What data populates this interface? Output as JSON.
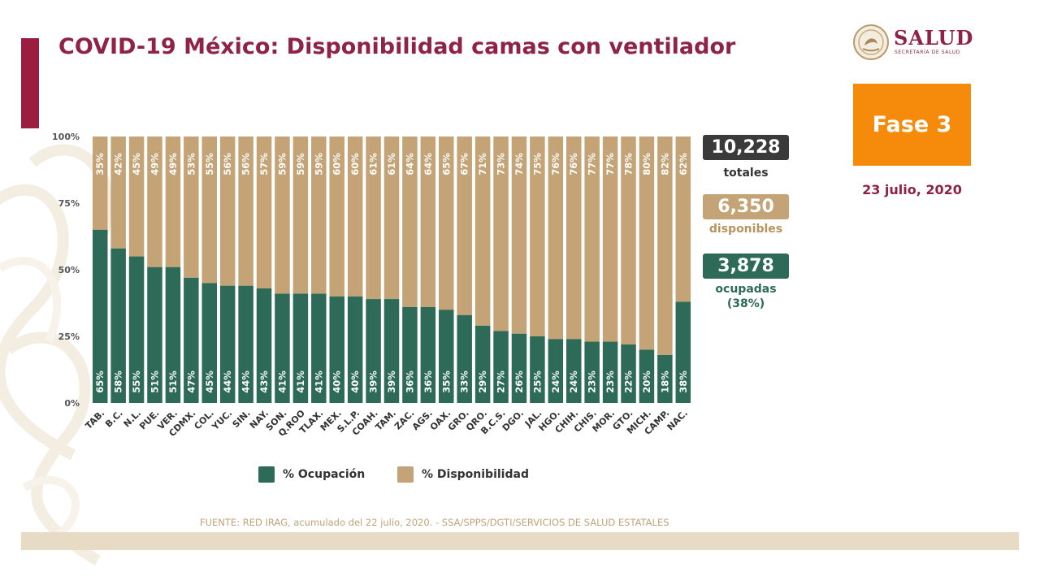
{
  "header": {
    "title": "COVID-19 México: Disponibilidad camas con ventilador"
  },
  "logo": {
    "name": "SALUD",
    "subtitle": "SECRETARÍA DE SALUD"
  },
  "phase": "Fase 3",
  "date": "23 julio, 2020",
  "stats": {
    "total_value": "10,228",
    "total_label": "totales",
    "available_value": "6,350",
    "available_label": "disponibles",
    "occupied_value": "3,878",
    "occupied_label": "ocupadas",
    "occupied_pct": "(38%)"
  },
  "source": "FUENTE: RED IRAG, acumulado del 22 julio, 2020. -  SSA/SPPS/DGTI/SERVICIOS DE SALUD ESTATALES",
  "colors": {
    "occupancy": "#2d6a57",
    "availability": "#c4a476",
    "title": "#8e2345",
    "phase": "#f58a0b",
    "total_box": "#3a3a3a"
  },
  "chart_data": {
    "type": "bar",
    "stacked": true,
    "categories": [
      "TAB.",
      "B.C.",
      "N.L.",
      "PUE.",
      "VER.",
      "CDMX.",
      "COL.",
      "YUC.",
      "SIN.",
      "NAY.",
      "SON.",
      "Q.ROO",
      "TLAX.",
      "MEX.",
      "S.L.P.",
      "COAH.",
      "TAM.",
      "ZAC.",
      "AGS.",
      "OAX.",
      "GRO.",
      "QRO.",
      "B.C.S.",
      "DGO.",
      "JAL.",
      "HGO.",
      "CHIH.",
      "CHIS.",
      "MOR.",
      "GTO.",
      "MICH.",
      "CAMP.",
      "NAC."
    ],
    "series": [
      {
        "name": "% Ocupación",
        "values": [
          65,
          58,
          55,
          51,
          51,
          47,
          45,
          44,
          44,
          43,
          41,
          41,
          41,
          40,
          40,
          39,
          39,
          36,
          36,
          35,
          33,
          29,
          27,
          26,
          25,
          24,
          24,
          23,
          23,
          22,
          20,
          18,
          38
        ]
      },
      {
        "name": "% Disponibilidad",
        "values": [
          35,
          42,
          45,
          49,
          49,
          53,
          55,
          56,
          56,
          57,
          59,
          59,
          59,
          60,
          60,
          61,
          61,
          64,
          64,
          65,
          67,
          71,
          73,
          74,
          75,
          76,
          76,
          77,
          77,
          78,
          80,
          82,
          62
        ]
      }
    ],
    "yticks": [
      "0%",
      "25%",
      "50%",
      "75%",
      "100%"
    ],
    "ylim": [
      0,
      100
    ],
    "xlabel": "",
    "ylabel": "",
    "legend": "bottom"
  }
}
